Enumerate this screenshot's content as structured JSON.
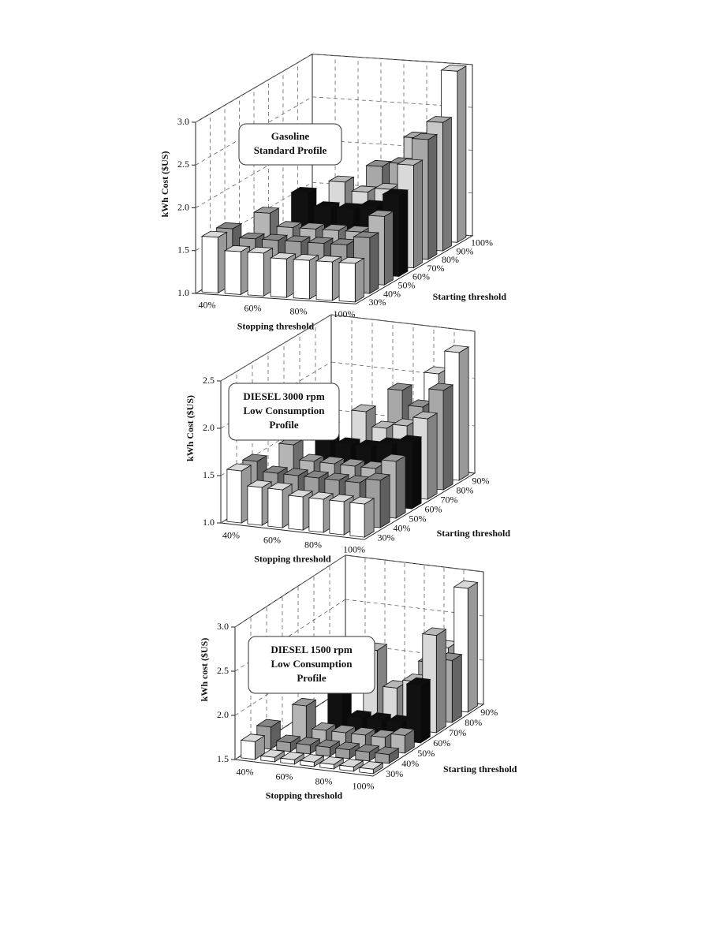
{
  "chart_data": [
    {
      "type": "bar3d",
      "title_lines": [
        "Gasoline",
        "Standard Profile"
      ],
      "ylabel": "kWh Cost ($US)",
      "xlabel": "Stopping threshold",
      "zlabel": "Starting threshold",
      "categories": [
        "40%",
        null,
        "60%",
        null,
        "80%",
        null,
        "100%"
      ],
      "ylim": [
        1,
        3
      ],
      "yticks": [
        {
          "value": 1,
          "label": "1.0"
        },
        {
          "value": 1.5,
          "label": "1.5"
        },
        {
          "value": 2,
          "label": "2.0"
        },
        {
          "value": 2.5,
          "label": "2.5"
        },
        {
          "value": 3,
          "label": "3.0"
        }
      ],
      "grid": true,
      "series": [
        {
          "name": "30%",
          "color": "#ffffff",
          "values": [
            1.65,
            1.5,
            1.5,
            1.45,
            1.45,
            1.45,
            1.45
          ]
        },
        {
          "name": "40%",
          "color": "#9e9e9e",
          "values": [
            1.65,
            1.55,
            1.55,
            1.55,
            1.55,
            1.55,
            1.65
          ]
        },
        {
          "name": "50%",
          "color": "#b5b5b5",
          "values": [
            null,
            1.75,
            1.6,
            1.6,
            1.6,
            1.6,
            1.8
          ]
        },
        {
          "name": "60%",
          "color": "#111111",
          "values": [
            null,
            null,
            1.9,
            1.75,
            1.75,
            1.8,
            1.95
          ]
        },
        {
          "name": "70%",
          "color": "#d9d9d9",
          "values": [
            null,
            null,
            null,
            1.95,
            1.85,
            1.9,
            2.2
          ]
        },
        {
          "name": "80%",
          "color": "#a8a8a8",
          "values": [
            null,
            null,
            null,
            null,
            2.05,
            2.1,
            2.4
          ]
        },
        {
          "name": "90%",
          "color": "#c8c8c8",
          "values": [
            null,
            null,
            null,
            null,
            null,
            2.3,
            2.5
          ]
        },
        {
          "name": "100%",
          "color": "#ffffff",
          "values": [
            null,
            null,
            null,
            null,
            null,
            null,
            3.0
          ]
        }
      ]
    },
    {
      "type": "bar3d",
      "title_lines": [
        "DIESEL 3000 rpm",
        "Low Consumption",
        "Profile"
      ],
      "ylabel": "kWh Cost ($US)",
      "xlabel": "Stopping threshold",
      "zlabel": "Starting threshold",
      "categories": [
        "40%",
        null,
        "60%",
        null,
        "80%",
        null,
        "100%"
      ],
      "ylim": [
        1,
        2.5
      ],
      "yticks": [
        {
          "value": 1,
          "label": "1.0"
        },
        {
          "value": 1.5,
          "label": "1.5"
        },
        {
          "value": 2,
          "label": "2.0"
        },
        {
          "value": 2.5,
          "label": "2.5"
        }
      ],
      "grid": true,
      "series": [
        {
          "name": "30%",
          "color": "#ffffff",
          "values": [
            1.55,
            1.4,
            1.4,
            1.35,
            1.35,
            1.35,
            1.35
          ]
        },
        {
          "name": "40%",
          "color": "#9e9e9e",
          "values": [
            1.55,
            1.45,
            1.45,
            1.45,
            1.45,
            1.45,
            1.5
          ]
        },
        {
          "name": "50%",
          "color": "#b5b5b5",
          "values": [
            null,
            1.65,
            1.5,
            1.5,
            1.5,
            1.5,
            1.6
          ]
        },
        {
          "name": "60%",
          "color": "#111111",
          "values": [
            null,
            null,
            1.75,
            1.6,
            1.6,
            1.65,
            1.7
          ]
        },
        {
          "name": "70%",
          "color": "#d9d9d9",
          "values": [
            null,
            null,
            null,
            1.85,
            1.7,
            1.75,
            1.85
          ]
        },
        {
          "name": "80%",
          "color": "#a8a8a8",
          "values": [
            null,
            null,
            null,
            null,
            2.0,
            1.85,
            2.05
          ]
        },
        {
          "name": "90%",
          "color": "#ffffff",
          "values": [
            null,
            null,
            null,
            null,
            null,
            2.1,
            2.35
          ]
        }
      ]
    },
    {
      "type": "bar3d",
      "title_lines": [
        "DIESEL 1500 rpm",
        "Low Consumption",
        "Profile"
      ],
      "ylabel": "kWh cost ($US)",
      "xlabel": "Stopping threshold",
      "zlabel": "Starting threshold",
      "categories": [
        "40%",
        null,
        "60%",
        null,
        "80%",
        null,
        "100%"
      ],
      "ylim": [
        1.5,
        3
      ],
      "yticks": [
        {
          "value": 1.5,
          "label": "1.5"
        },
        {
          "value": 2,
          "label": "2.0"
        },
        {
          "value": 2.5,
          "label": "2.5"
        },
        {
          "value": 3,
          "label": "3.0"
        }
      ],
      "grid": true,
      "series": [
        {
          "name": "30%",
          "color": "#ffffff",
          "values": [
            1.7,
            1.55,
            1.55,
            1.55,
            1.55,
            1.55,
            1.55
          ]
        },
        {
          "name": "40%",
          "color": "#9e9e9e",
          "values": [
            1.75,
            1.6,
            1.6,
            1.6,
            1.6,
            1.6,
            1.6
          ]
        },
        {
          "name": "50%",
          "color": "#b5b5b5",
          "values": [
            null,
            1.9,
            1.65,
            1.65,
            1.65,
            1.65,
            1.7
          ]
        },
        {
          "name": "60%",
          "color": "#111111",
          "values": [
            null,
            null,
            2.05,
            1.7,
            1.7,
            1.7,
            2.15
          ]
        },
        {
          "name": "70%",
          "color": "#d9d9d9",
          "values": [
            null,
            null,
            null,
            2.35,
            1.95,
            2.05,
            2.6
          ]
        },
        {
          "name": "80%",
          "color": "#a8a8a8",
          "values": [
            null,
            null,
            null,
            null,
            1.8,
            2.15,
            2.2
          ]
        },
        {
          "name": "90%",
          "color": "#ffffff",
          "values": [
            null,
            null,
            null,
            null,
            null,
            2.2,
            2.9
          ]
        }
      ]
    }
  ]
}
